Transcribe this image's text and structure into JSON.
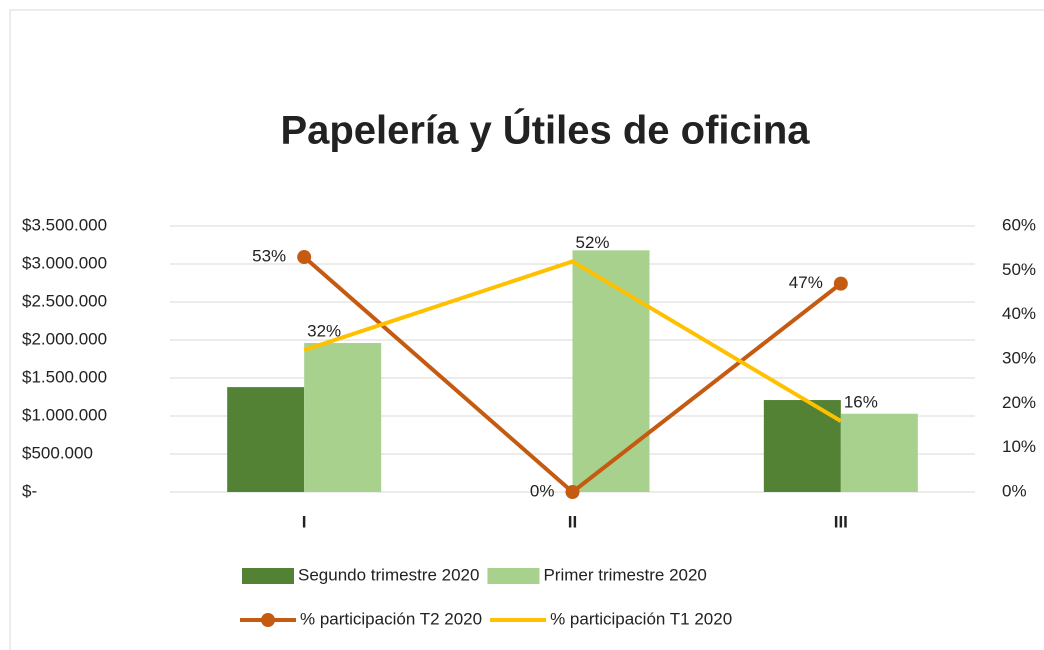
{
  "chart_data": {
    "type": "combo",
    "title": "Papelería y Útiles de oficina",
    "categories": [
      "I",
      "II",
      "III"
    ],
    "series": [
      {
        "name": "Segundo trimestre 2020",
        "type": "bar",
        "color": "#548235",
        "values": [
          1380000,
          0,
          1210000
        ]
      },
      {
        "name": "Primer trimestre 2020",
        "type": "bar",
        "color": "#a9d18e",
        "values": [
          1960000,
          3180000,
          1030000
        ]
      },
      {
        "name": "% participación T2 2020",
        "type": "line",
        "axis": "y2",
        "color": "#c55a11",
        "marker": true,
        "values": [
          53,
          0,
          47
        ],
        "value_labels": [
          "53%",
          "0%",
          "47%"
        ]
      },
      {
        "name": "% participación T1 2020",
        "type": "line",
        "axis": "y2",
        "color": "#ffc000",
        "marker": false,
        "values": [
          32,
          52,
          16
        ],
        "value_labels": [
          "32%",
          "52%",
          "16%"
        ]
      }
    ],
    "ylim": [
      0,
      3500000
    ],
    "yticks": [
      {
        "value": 0,
        "label": "$-"
      },
      {
        "value": 500000,
        "label": "$500.000"
      },
      {
        "value": 1000000,
        "label": "$1.000.000"
      },
      {
        "value": 1500000,
        "label": "$1.500.000"
      },
      {
        "value": 2000000,
        "label": "$2.000.000"
      },
      {
        "value": 2500000,
        "label": "$2.500.000"
      },
      {
        "value": 3000000,
        "label": "$3.000.000"
      },
      {
        "value": 3500000,
        "label": "$3.500.000"
      }
    ],
    "y2lim": [
      0,
      60
    ],
    "y2ticks": [
      {
        "value": 0,
        "label": "0%"
      },
      {
        "value": 10,
        "label": "10%"
      },
      {
        "value": 20,
        "label": "20%"
      },
      {
        "value": 30,
        "label": "30%"
      },
      {
        "value": 40,
        "label": "40%"
      },
      {
        "value": 50,
        "label": "50%"
      },
      {
        "value": 60,
        "label": "60%"
      }
    ],
    "grid": true
  }
}
